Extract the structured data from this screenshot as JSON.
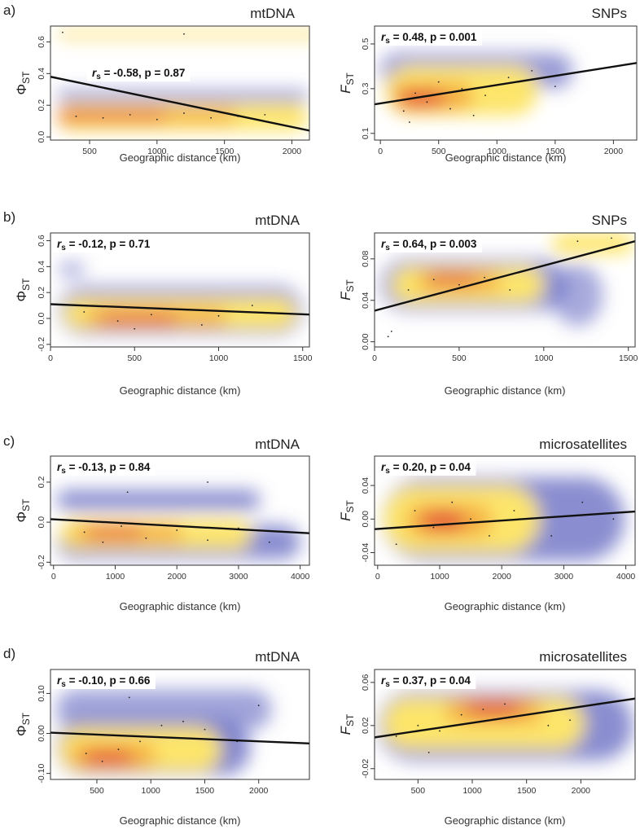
{
  "rows": [
    {
      "marker": "a)"
    },
    {
      "marker": "b)"
    },
    {
      "marker": "c)"
    },
    {
      "marker": "d)"
    }
  ],
  "chart_data": [
    {
      "type": "scatter",
      "panel": "a-left",
      "title": "mtDNA",
      "ylabel": "Φ",
      "ylabel_sub": "ST",
      "xlabel": "Geographic distance (km)",
      "xlim": [
        210,
        2130
      ],
      "ylim": [
        -0.02,
        0.7
      ],
      "xticks": [
        500,
        1000,
        1500,
        2000
      ],
      "yticks": [
        0.0,
        0.2,
        0.4,
        0.6
      ],
      "ytick_labels": [
        "0.0",
        "0.2",
        "0.4",
        "0.6"
      ],
      "stat_rs": "-0.58",
      "stat_rest": ", p = 0.87",
      "regression": {
        "x": [
          210,
          2130
        ],
        "y": [
          0.38,
          0.04
        ]
      },
      "density": [
        {
          "x": 260,
          "y": 0.648,
          "w": 1960,
          "h": 0.055,
          "c": "#fbe07a",
          "o": 0.95
        },
        {
          "x": 260,
          "y": 0.255,
          "w": 1860,
          "h": 0.07,
          "c": "#6d72c4",
          "o": 0.8
        },
        {
          "x": 260,
          "y": 0.125,
          "w": 1860,
          "h": 0.17,
          "c": "#fde56a",
          "o": 1
        },
        {
          "x": 260,
          "y": 0.13,
          "w": 1330,
          "h": 0.1,
          "c": "#f2a23a",
          "o": 0.7
        },
        {
          "x": 260,
          "y": 0.13,
          "w": 800,
          "h": 0.06,
          "c": "#e34a3a",
          "o": 0.8
        }
      ],
      "points": [
        [
          400,
          0.13
        ],
        [
          600,
          0.12
        ],
        [
          800,
          0.14
        ],
        [
          1000,
          0.11
        ],
        [
          1200,
          0.15
        ],
        [
          1400,
          0.12
        ],
        [
          1600,
          0.13
        ],
        [
          1800,
          0.14
        ],
        [
          300,
          0.66
        ],
        [
          1200,
          0.65
        ]
      ]
    },
    {
      "type": "scatter",
      "panel": "a-right",
      "title": "SNPs",
      "ylabel": "F",
      "ylabel_sub": "ST",
      "xlabel": "Geographic distance (km)",
      "xlim": [
        -50,
        2200
      ],
      "ylim": [
        0.07,
        0.58
      ],
      "xticks": [
        0,
        500,
        1000,
        1500,
        2000
      ],
      "yticks": [
        0.1,
        0.3,
        0.5
      ],
      "ytick_labels": [
        "0.1",
        "0.3",
        "0.5"
      ],
      "stat_rs": "0.48",
      "stat_rest": ", p = 0.001",
      "regression": {
        "x": [
          -50,
          2200
        ],
        "y": [
          0.23,
          0.415
        ]
      },
      "density": [
        {
          "x": 0,
          "y": 0.38,
          "w": 1650,
          "h": 0.16,
          "c": "#6d72c4",
          "o": 0.7
        },
        {
          "x": 50,
          "y": 0.29,
          "w": 1300,
          "h": 0.22,
          "c": "#fde56a",
          "o": 1
        },
        {
          "x": 100,
          "y": 0.265,
          "w": 700,
          "h": 0.12,
          "c": "#f2a23a",
          "o": 0.8
        },
        {
          "x": 150,
          "y": 0.255,
          "w": 400,
          "h": 0.08,
          "c": "#e34a3a",
          "o": 0.85
        }
      ],
      "points": [
        [
          200,
          0.2
        ],
        [
          300,
          0.28
        ],
        [
          400,
          0.24
        ],
        [
          500,
          0.33
        ],
        [
          600,
          0.21
        ],
        [
          700,
          0.3
        ],
        [
          900,
          0.27
        ],
        [
          1100,
          0.35
        ],
        [
          1300,
          0.38
        ],
        [
          1500,
          0.31
        ],
        [
          250,
          0.15
        ],
        [
          800,
          0.18
        ]
      ]
    },
    {
      "type": "scatter",
      "panel": "b-left",
      "title": "mtDNA",
      "ylabel": "Φ",
      "ylabel_sub": "ST",
      "xlabel": "Geographic distance (km)",
      "xlim": [
        0,
        1540
      ],
      "ylim": [
        -0.22,
        0.66
      ],
      "xticks": [
        0,
        500,
        1000,
        1500
      ],
      "yticks": [
        -0.2,
        0.0,
        0.2,
        0.4,
        0.6
      ],
      "ytick_labels": [
        "-0.2",
        "0.0",
        "0.2",
        "0.4",
        "0.6"
      ],
      "stat_rs": "-0.12",
      "stat_rest": ", p = 0.71",
      "regression": {
        "x": [
          0,
          1540
        ],
        "y": [
          0.11,
          0.03
        ]
      },
      "density": [
        {
          "x": 50,
          "y": 0.38,
          "w": 150,
          "h": 0.09,
          "c": "#6d72c4",
          "o": 0.7
        },
        {
          "x": 50,
          "y": 0.06,
          "w": 1450,
          "h": 0.38,
          "c": "#6d72c4",
          "o": 0.75
        },
        {
          "x": 80,
          "y": 0.04,
          "w": 1380,
          "h": 0.24,
          "c": "#fde56a",
          "o": 1
        },
        {
          "x": 200,
          "y": 0.01,
          "w": 850,
          "h": 0.14,
          "c": "#f2a23a",
          "o": 0.75
        },
        {
          "x": 300,
          "y": 0.0,
          "w": 450,
          "h": 0.08,
          "c": "#e34a3a",
          "o": 0.85
        }
      ],
      "points": [
        [
          200,
          0.05
        ],
        [
          400,
          -0.02
        ],
        [
          600,
          0.03
        ],
        [
          800,
          0.07
        ],
        [
          1000,
          0.02
        ],
        [
          1200,
          0.1
        ],
        [
          1350,
          0.04
        ],
        [
          500,
          -0.08
        ],
        [
          900,
          -0.05
        ]
      ]
    },
    {
      "type": "scatter",
      "panel": "b-right",
      "title": "SNPs",
      "ylabel": "F",
      "ylabel_sub": "ST",
      "xlabel": "Geographic distance (km)",
      "xlim": [
        0,
        1540
      ],
      "ylim": [
        -0.005,
        0.105
      ],
      "xticks": [
        0,
        500,
        1000,
        1500
      ],
      "yticks": [
        0.0,
        0.04,
        0.08
      ],
      "ytick_labels": [
        "0.00",
        "0.04",
        "0.08"
      ],
      "stat_rs": "0.64",
      "stat_rest": ", p = 0.003",
      "regression": {
        "x": [
          0,
          1540
        ],
        "y": [
          0.03,
          0.097
        ]
      },
      "density": [
        {
          "x": 40,
          "y": 0.055,
          "w": 1100,
          "h": 0.05,
          "c": "#6d72c4",
          "o": 0.75
        },
        {
          "x": 1050,
          "y": 0.095,
          "w": 480,
          "h": 0.02,
          "c": "#fde56a",
          "o": 1
        },
        {
          "x": 1050,
          "y": 0.045,
          "w": 300,
          "h": 0.06,
          "c": "#6d72c4",
          "o": 0.6
        },
        {
          "x": 100,
          "y": 0.055,
          "w": 900,
          "h": 0.035,
          "c": "#fde56a",
          "o": 1
        },
        {
          "x": 250,
          "y": 0.058,
          "w": 500,
          "h": 0.018,
          "c": "#f2a23a",
          "o": 0.8
        },
        {
          "x": 320,
          "y": 0.06,
          "w": 280,
          "h": 0.011,
          "c": "#e34a3a",
          "o": 0.85
        }
      ],
      "points": [
        [
          200,
          0.05
        ],
        [
          350,
          0.06
        ],
        [
          500,
          0.055
        ],
        [
          650,
          0.062
        ],
        [
          800,
          0.05
        ],
        [
          100,
          0.01
        ],
        [
          80,
          0.005
        ],
        [
          1200,
          0.097
        ],
        [
          1400,
          0.1
        ]
      ]
    },
    {
      "type": "scatter",
      "panel": "c-left",
      "title": "mtDNA",
      "ylabel": "Φ",
      "ylabel_sub": "ST",
      "xlabel": "Geographic distance (km)",
      "xlim": [
        -50,
        4150
      ],
      "ylim": [
        -0.215,
        0.33
      ],
      "xticks": [
        0,
        1000,
        2000,
        3000,
        4000
      ],
      "yticks": [
        -0.2,
        0.0,
        0.2
      ],
      "ytick_labels": [
        "-0.2",
        "0.0",
        "0.2"
      ],
      "stat_rs": "-0.13",
      "stat_rest": ", p = 0.84",
      "regression": {
        "x": [
          -50,
          4150
        ],
        "y": [
          0.015,
          -0.055
        ]
      },
      "density": [
        {
          "x": 50,
          "y": 0.11,
          "w": 3300,
          "h": 0.1,
          "c": "#6d72c4",
          "o": 0.8
        },
        {
          "x": 50,
          "y": -0.1,
          "w": 3950,
          "h": 0.17,
          "c": "#6d72c4",
          "o": 0.8
        },
        {
          "x": 100,
          "y": -0.06,
          "w": 3100,
          "h": 0.15,
          "c": "#fde56a",
          "o": 1
        },
        {
          "x": 300,
          "y": -0.055,
          "w": 1800,
          "h": 0.09,
          "c": "#f2a23a",
          "o": 0.75
        },
        {
          "x": 550,
          "y": -0.055,
          "w": 900,
          "h": 0.055,
          "c": "#e34a3a",
          "o": 0.85
        }
      ],
      "points": [
        [
          500,
          -0.05
        ],
        [
          800,
          -0.1
        ],
        [
          1100,
          -0.02
        ],
        [
          1500,
          -0.08
        ],
        [
          2000,
          -0.04
        ],
        [
          2500,
          -0.09
        ],
        [
          3000,
          -0.03
        ],
        [
          3500,
          -0.1
        ],
        [
          1200,
          0.15
        ],
        [
          2500,
          0.2
        ]
      ]
    },
    {
      "type": "scatter",
      "panel": "c-right",
      "title": "microsatellites",
      "ylabel": "F",
      "ylabel_sub": "ST",
      "xlabel": "Geographic distance (km)",
      "xlim": [
        -50,
        4150
      ],
      "ylim": [
        -0.055,
        0.075
      ],
      "xticks": [
        0,
        1000,
        2000,
        3000,
        4000
      ],
      "yticks": [
        -0.04,
        0.0,
        0.04
      ],
      "ytick_labels": [
        "-0.04",
        "0.00",
        "0.04"
      ],
      "stat_rs": "0.20",
      "stat_rest": ", p = 0.04",
      "regression": {
        "x": [
          -50,
          4150
        ],
        "y": [
          -0.012,
          0.009
        ]
      },
      "density": [
        {
          "x": 80,
          "y": 0.0,
          "w": 3900,
          "h": 0.1,
          "c": "#6d72c4",
          "o": 0.8
        },
        {
          "x": 100,
          "y": 0.0,
          "w": 2500,
          "h": 0.08,
          "c": "#fde56a",
          "o": 1
        },
        {
          "x": 450,
          "y": -0.002,
          "w": 1400,
          "h": 0.04,
          "c": "#f2a23a",
          "o": 0.75
        },
        {
          "x": 700,
          "y": -0.002,
          "w": 700,
          "h": 0.025,
          "c": "#e34a3a",
          "o": 0.85
        }
      ],
      "points": [
        [
          300,
          -0.03
        ],
        [
          600,
          0.01
        ],
        [
          900,
          -0.01
        ],
        [
          1200,
          0.02
        ],
        [
          1500,
          0.0
        ],
        [
          1800,
          -0.02
        ],
        [
          2200,
          0.01
        ],
        [
          2800,
          -0.02
        ],
        [
          3300,
          0.02
        ],
        [
          3800,
          0.0
        ]
      ]
    },
    {
      "type": "scatter",
      "panel": "d-left",
      "title": "mtDNA",
      "ylabel": "Φ",
      "ylabel_sub": "ST",
      "xlabel": "Geographic distance (km)",
      "xlim": [
        70,
        2470
      ],
      "ylim": [
        -0.115,
        0.16
      ],
      "xticks": [
        500,
        1000,
        1500,
        2000
      ],
      "yticks": [
        -0.1,
        0.0,
        0.1
      ],
      "ytick_labels": [
        "-0.10",
        "0.00",
        "0.10"
      ],
      "stat_rs": "-0.10",
      "stat_rest": ", p = 0.66",
      "regression": {
        "x": [
          70,
          2470
        ],
        "y": [
          0.002,
          -0.025
        ]
      },
      "density": [
        {
          "x": 120,
          "y": 0.06,
          "w": 2000,
          "h": 0.1,
          "c": "#6d72c4",
          "o": 0.65
        },
        {
          "x": 120,
          "y": -0.035,
          "w": 1800,
          "h": 0.14,
          "c": "#6d72c4",
          "o": 0.85
        },
        {
          "x": 150,
          "y": -0.04,
          "w": 1500,
          "h": 0.11,
          "c": "#fde56a",
          "o": 1
        },
        {
          "x": 250,
          "y": -0.055,
          "w": 800,
          "h": 0.06,
          "c": "#f2a23a",
          "o": 0.8
        },
        {
          "x": 380,
          "y": -0.06,
          "w": 450,
          "h": 0.04,
          "c": "#e34a3a",
          "o": 0.85
        }
      ],
      "points": [
        [
          400,
          -0.05
        ],
        [
          550,
          -0.07
        ],
        [
          700,
          -0.04
        ],
        [
          900,
          -0.02
        ],
        [
          1100,
          0.02
        ],
        [
          1300,
          0.03
        ],
        [
          1500,
          0.01
        ],
        [
          1800,
          -0.02
        ],
        [
          800,
          0.09
        ],
        [
          2000,
          0.07
        ]
      ]
    },
    {
      "type": "scatter",
      "panel": "d-right",
      "title": "microsatellites",
      "ylabel": "F",
      "ylabel_sub": "ST",
      "xlabel": "Geographic distance (km)",
      "xlim": [
        100,
        2500
      ],
      "ylim": [
        -0.03,
        0.072
      ],
      "xticks": [
        500,
        1000,
        1500,
        2000
      ],
      "yticks": [
        -0.02,
        0.02,
        0.06
      ],
      "ytick_labels": [
        "-0.02",
        "0.02",
        "0.06"
      ],
      "stat_rs": "0.37",
      "stat_rest": ", p = 0.04",
      "regression": {
        "x": [
          100,
          2500
        ],
        "y": [
          0.009,
          0.045
        ]
      },
      "density": [
        {
          "x": 130,
          "y": 0.02,
          "w": 2350,
          "h": 0.065,
          "c": "#6d72c4",
          "o": 0.8
        },
        {
          "x": 180,
          "y": 0.022,
          "w": 1850,
          "h": 0.048,
          "c": "#fde56a",
          "o": 1
        },
        {
          "x": 750,
          "y": 0.033,
          "w": 900,
          "h": 0.022,
          "c": "#f2a23a",
          "o": 0.8
        },
        {
          "x": 950,
          "y": 0.035,
          "w": 500,
          "h": 0.014,
          "c": "#e34a3a",
          "o": 0.85
        }
      ],
      "points": [
        [
          300,
          0.01
        ],
        [
          500,
          0.02
        ],
        [
          700,
          0.015
        ],
        [
          900,
          0.03
        ],
        [
          1100,
          0.035
        ],
        [
          1300,
          0.04
        ],
        [
          1500,
          0.03
        ],
        [
          1700,
          0.02
        ],
        [
          1900,
          0.025
        ],
        [
          600,
          -0.005
        ]
      ]
    }
  ]
}
